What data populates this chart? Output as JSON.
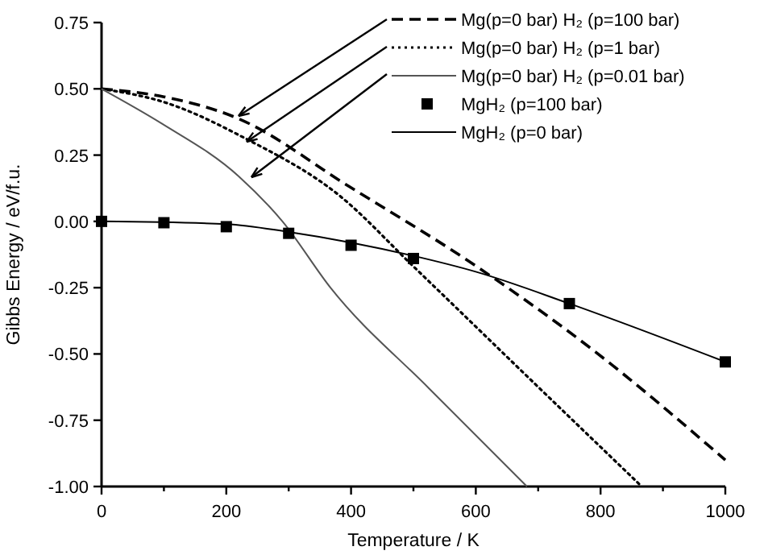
{
  "chart_data": {
    "type": "line",
    "xlabel": "Temperature / K",
    "ylabel": "Gibbs Energy / eV/f.u.",
    "xlim": [
      0,
      1000
    ],
    "ylim": [
      -1,
      0.75
    ],
    "xticks": [
      0,
      {
        "value": 100,
        "label": null
      },
      200,
      {
        "value": 300,
        "label": null
      },
      400,
      {
        "value": 500,
        "label": null
      },
      600,
      {
        "value": 700,
        "label": null
      },
      800,
      {
        "value": 900,
        "label": null
      },
      1000
    ],
    "yticks": [
      {
        "value": -1,
        "label": "-1.00"
      },
      {
        "value": -0.75,
        "label": "-0.75"
      },
      {
        "value": -0.5,
        "label": "-0.50"
      },
      {
        "value": -0.25,
        "label": "-0.25"
      },
      {
        "value": 0,
        "label": "0.00"
      },
      {
        "value": 0.25,
        "label": "0.25"
      },
      {
        "value": 0.5,
        "label": "0.50"
      },
      {
        "value": 0.75,
        "label": "0.75"
      }
    ],
    "legend": "top right",
    "grid": false,
    "series": [
      {
        "name": "Mg(p=0 bar) H₂  (p=100 bar)",
        "line_style": "dashed",
        "marker": "none",
        "color": "#000000",
        "x": [
          0,
          100,
          217,
          398,
          595,
          785,
          1000
        ],
        "values": [
          0.5,
          0.47,
          0.39,
          0.13,
          -0.16,
          -0.48,
          -0.9
        ]
      },
      {
        "name": "Mg(p=0 bar) H₂  (p=1 bar)",
        "line_style": "dotted",
        "marker": "none",
        "color": "#000000",
        "x": [
          0,
          100,
          233,
          380,
          500,
          698,
          866
        ],
        "values": [
          0.5,
          0.45,
          0.31,
          0.1,
          -0.17,
          -0.62,
          -1.0
        ]
      },
      {
        "name": "Mg(p=0 bar) H₂  (p=0.01 bar)",
        "line_style": "solid",
        "marker": "none",
        "color": "#555555",
        "x": [
          0,
          96,
          220,
          290,
          367,
          525,
          682
        ],
        "values": [
          0.5,
          0.37,
          0.17,
          0,
          -0.25,
          -0.63,
          -1.0
        ]
      },
      {
        "name": "MgH₂  (p=100 bar)",
        "type": "scatter",
        "marker": "square",
        "color": "#000000",
        "x": [
          0,
          100,
          200,
          300,
          400,
          500,
          750,
          1000
        ],
        "values": [
          0,
          -0.005,
          -0.02,
          -0.045,
          -0.09,
          -0.14,
          -0.31,
          -0.53
        ]
      },
      {
        "name": "MgH₂  (p=0 bar)",
        "line_style": "solid",
        "marker": "none",
        "color": "#000000",
        "x": [
          0,
          200,
          300,
          400,
          500,
          600,
          750,
          1000
        ],
        "values": [
          0,
          -0.01,
          -0.04,
          -0.08,
          -0.13,
          -0.19,
          -0.31,
          -0.53
        ]
      }
    ]
  }
}
